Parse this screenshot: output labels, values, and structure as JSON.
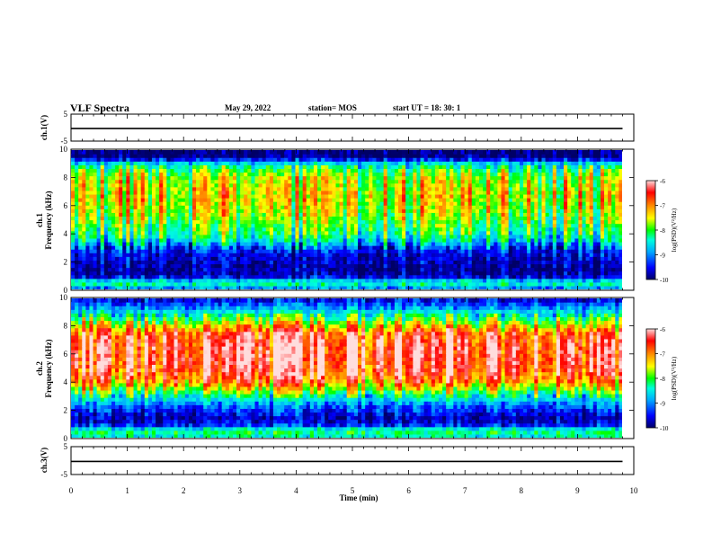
{
  "header": {
    "title": "VLF Spectra",
    "date": "May 29, 2022",
    "station": "station= MOS",
    "start_ut": "start UT = 18: 30: 1"
  },
  "chart_data": [
    {
      "type": "line",
      "panel": "ch1-waveform",
      "ylabel": "ch.1(V)",
      "ylim": [
        -5,
        5
      ],
      "yticks": [
        "5",
        "-5"
      ],
      "xlim": [
        0,
        10
      ],
      "level": -0.3
    },
    {
      "type": "heatmap",
      "panel": "ch1-spectrogram",
      "ylabel": "ch.1 Frequency (kHz)",
      "ylabel_line1": "ch.1",
      "ylabel_line2": "Frequency (kHz)",
      "ylim": [
        0,
        10
      ],
      "yticks": [
        "0",
        "2",
        "4",
        "6",
        "8",
        "10"
      ],
      "xlim": [
        0,
        9.8
      ],
      "colorbar": {
        "label": "log(PSD)(V²/Hz)",
        "range": [
          -10,
          -6
        ],
        "ticks": [
          "-6",
          "-7",
          "-8",
          "-9",
          "-10"
        ]
      },
      "profile": {
        "freq_khz": [
          0,
          0.5,
          1,
          1.5,
          2,
          2.5,
          3,
          3.5,
          4,
          4.5,
          5,
          5.5,
          6,
          6.5,
          7,
          7.5,
          8,
          8.5,
          9,
          9.5,
          10
        ],
        "log_psd": [
          -9.2,
          -8.3,
          -9.8,
          -9.8,
          -9.7,
          -9.6,
          -9.3,
          -8.6,
          -8.2,
          -8.0,
          -7.8,
          -7.6,
          -7.5,
          -7.4,
          -7.4,
          -7.5,
          -7.6,
          -7.9,
          -8.5,
          -9.9,
          -10
        ]
      }
    },
    {
      "type": "heatmap",
      "panel": "ch2-spectrogram",
      "ylabel": "ch.2 Frequency (kHz)",
      "ylabel_line1": "ch.2",
      "ylabel_line2": "Frequency (kHz)",
      "ylim": [
        0,
        10
      ],
      "yticks": [
        "0",
        "2",
        "4",
        "6",
        "8",
        "10"
      ],
      "xlim": [
        0,
        9.8
      ],
      "colorbar": {
        "label": "log(PSD)(V²/Hz)",
        "range": [
          -10,
          -6
        ],
        "ticks": [
          "-6",
          "-7",
          "-8",
          "-9",
          "-10"
        ]
      },
      "profile": {
        "freq_khz": [
          0,
          0.5,
          1,
          1.5,
          2,
          2.5,
          3,
          3.5,
          4,
          4.5,
          5,
          5.5,
          6,
          6.5,
          7,
          7.5,
          8,
          8.5,
          9,
          9.5,
          10
        ],
        "log_psd": [
          -8.6,
          -8.2,
          -9.6,
          -9.7,
          -9.4,
          -9.0,
          -8.4,
          -7.7,
          -7.0,
          -6.7,
          -6.5,
          -6.4,
          -6.4,
          -6.4,
          -6.5,
          -6.7,
          -7.3,
          -8.0,
          -8.6,
          -9.2,
          -9.6
        ]
      }
    },
    {
      "type": "line",
      "panel": "ch3-waveform",
      "ylabel": "ch.3(V)",
      "ylim": [
        -5,
        5
      ],
      "yticks": [
        "5",
        "-5"
      ],
      "xlim": [
        0,
        10
      ],
      "level": -0.3
    }
  ],
  "xaxis": {
    "label": "Time (min)",
    "ticks": [
      "0",
      "1",
      "2",
      "3",
      "4",
      "5",
      "6",
      "7",
      "8",
      "9",
      "10"
    ]
  },
  "colors": {
    "colormap": [
      "#000066",
      "#0000ff",
      "#00aaff",
      "#00ffdd",
      "#00ff00",
      "#ffff00",
      "#ff8800",
      "#ff0000",
      "#ffdddd"
    ],
    "waveform": "#000000"
  }
}
